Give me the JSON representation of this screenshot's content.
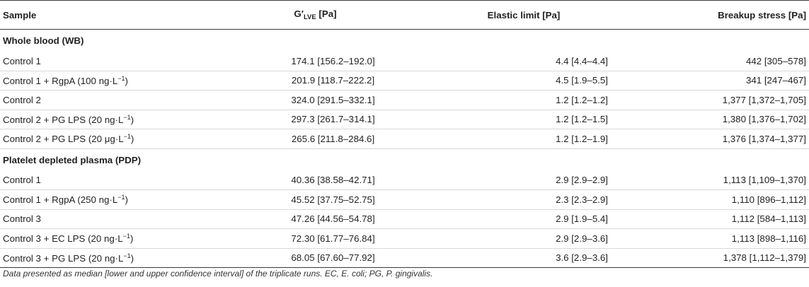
{
  "headers": {
    "sample": "Sample",
    "g_main": "G′",
    "g_sub": "LVE",
    "g_unit": " [Pa]",
    "elastic": "Elastic limit [Pa]",
    "breakup": "Breakup stress [Pa]"
  },
  "sections": [
    {
      "title": "Whole blood (WB)",
      "rows": [
        {
          "label": "Control 1",
          "label_sup": "",
          "label_tail": "",
          "g": "174.1 [156.2–192.0]",
          "elastic": "4.4 [4.4–4.4]",
          "breakup": "442 [305–578]"
        },
        {
          "label": "Control 1 + RgpA (100 ng·L",
          "label_sup": "−1",
          "label_tail": ")",
          "g": "201.9 [118.7–222.2]",
          "elastic": "4.5 [1.9–5.5]",
          "breakup": "341 [247–467]"
        },
        {
          "label": "Control 2",
          "label_sup": "",
          "label_tail": "",
          "g": "324.0 [291.5–332.1]",
          "elastic": "1.2 [1.2–1.2]",
          "breakup": "1,377 [1,372–1,705]"
        },
        {
          "label": "Control 2 + PG LPS (20 ng·L",
          "label_sup": "−1",
          "label_tail": ")",
          "g": "297.3 [261.7–314.1]",
          "elastic": "1.2 [1.2–1.5]",
          "breakup": "1,380 [1,376–1,702]"
        },
        {
          "label": "Control 2 + PG LPS (20 μg·L",
          "label_sup": "−1",
          "label_tail": ")",
          "g": "265.6 [211.8–284.6]",
          "elastic": "1.2 [1.2–1.9]",
          "breakup": "1,376 [1,374–1,377]"
        }
      ]
    },
    {
      "title": "Platelet depleted plasma (PDP)",
      "rows": [
        {
          "label": "Control 1",
          "label_sup": "",
          "label_tail": "",
          "g": "40.36 [38.58–42.71]",
          "elastic": "2.9 [2.9–2.9]",
          "breakup": "1,113 [1,109–1,370]"
        },
        {
          "label": "Control 1 + RgpA (250 ng·L",
          "label_sup": "−1",
          "label_tail": ")",
          "g": "45.52 [37.75–52.75]",
          "elastic": "2.3 [2.3–2.9]",
          "breakup": "1,110 [896–1,112]"
        },
        {
          "label": "Control 3",
          "label_sup": "",
          "label_tail": "",
          "g": "47.26 [44.56–54.78]",
          "elastic": "2.9 [1.9–5.4]",
          "breakup": "1,112 [584–1,113]"
        },
        {
          "label": "Control 3 + EC LPS (20 ng·L",
          "label_sup": "−1",
          "label_tail": ")",
          "g": "72.30 [61.77–76.84]",
          "elastic": "2.9 [2.9–3.6]",
          "breakup": "1,113 [898–1,116]"
        },
        {
          "label": "Control 3 + PG LPS (20 ng·L",
          "label_sup": "−1",
          "label_tail": ")",
          "g": "68.05 [67.60–77.92]",
          "elastic": "3.6 [2.9–3.6]",
          "breakup": "1,378 [1,112–1,379]"
        }
      ]
    }
  ],
  "footnote": "Data presented as median [lower and upper confidence interval] of the triplicate runs. EC, E. coli; PG, P. gingivalis."
}
